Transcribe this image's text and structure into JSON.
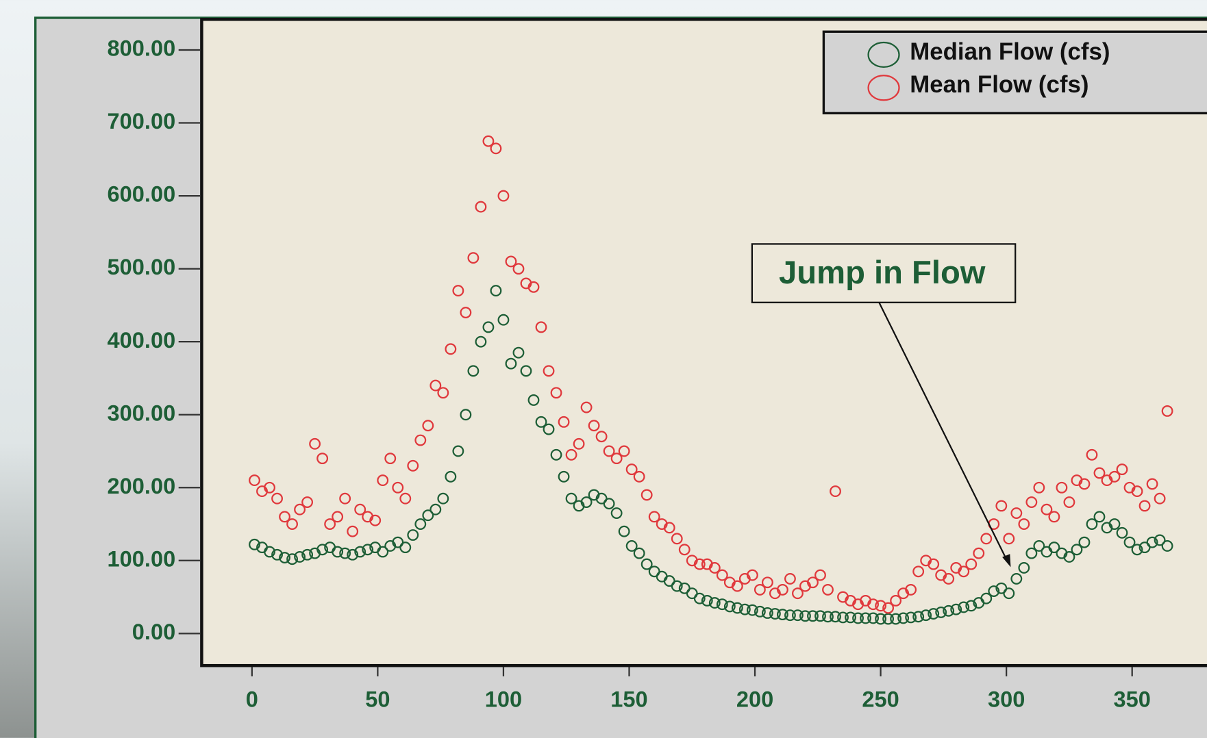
{
  "chart_data": {
    "type": "scatter",
    "annotation": "Jump in Flow",
    "x": [
      1,
      4,
      7,
      10,
      13,
      16,
      19,
      22,
      25,
      28,
      31,
      34,
      37,
      40,
      43,
      46,
      49,
      52,
      55,
      58,
      61,
      64,
      67,
      70,
      73,
      76,
      79,
      82,
      85,
      88,
      91,
      94,
      97,
      100,
      103,
      106,
      109,
      112,
      115,
      118,
      121,
      124,
      127,
      130,
      133,
      136,
      139,
      142,
      145,
      148,
      151,
      154,
      157,
      160,
      163,
      166,
      169,
      172,
      175,
      178,
      181,
      184,
      187,
      190,
      193,
      196,
      199,
      202,
      205,
      208,
      211,
      214,
      217,
      220,
      223,
      226,
      229,
      232,
      235,
      238,
      241,
      244,
      247,
      250,
      253,
      256,
      259,
      262,
      265,
      268,
      271,
      274,
      277,
      280,
      283,
      286,
      289,
      292,
      295,
      298,
      301,
      304,
      307,
      310,
      313,
      316,
      319,
      322,
      325,
      328,
      331,
      334,
      337,
      340,
      343,
      346,
      349,
      352,
      355,
      358,
      361,
      364
    ],
    "series": [
      {
        "name": "Median Flow (cfs)",
        "color": "#1d5e36",
        "values": [
          122,
          118,
          112,
          108,
          104,
          102,
          105,
          108,
          110,
          115,
          118,
          112,
          110,
          108,
          112,
          115,
          118,
          112,
          120,
          125,
          118,
          135,
          150,
          162,
          170,
          185,
          215,
          250,
          300,
          360,
          400,
          420,
          470,
          430,
          370,
          385,
          360,
          320,
          290,
          280,
          245,
          215,
          185,
          175,
          180,
          190,
          185,
          178,
          165,
          140,
          120,
          110,
          95,
          85,
          78,
          72,
          65,
          62,
          55,
          48,
          45,
          42,
          40,
          37,
          35,
          33,
          32,
          30,
          28,
          27,
          26,
          25,
          25,
          24,
          24,
          24,
          23,
          23,
          22,
          22,
          21,
          21,
          21,
          20,
          20,
          20,
          21,
          22,
          23,
          25,
          27,
          29,
          31,
          33,
          36,
          38,
          42,
          48,
          58,
          62,
          55,
          75,
          90,
          110,
          120,
          112,
          118,
          110,
          105,
          115,
          125,
          150,
          160,
          145,
          150,
          138,
          125,
          115,
          118,
          125,
          128,
          120
        ]
      },
      {
        "name": "Mean Flow (cfs)",
        "color": "#e0383c",
        "values": [
          210,
          195,
          200,
          185,
          160,
          150,
          170,
          180,
          260,
          240,
          150,
          160,
          185,
          140,
          170,
          160,
          155,
          210,
          240,
          200,
          185,
          230,
          265,
          285,
          340,
          330,
          390,
          470,
          440,
          515,
          585,
          675,
          665,
          600,
          510,
          500,
          480,
          475,
          420,
          360,
          330,
          290,
          245,
          260,
          310,
          285,
          270,
          250,
          240,
          250,
          225,
          215,
          190,
          160,
          150,
          145,
          130,
          115,
          100,
          95,
          95,
          90,
          80,
          70,
          65,
          75,
          80,
          60,
          70,
          55,
          60,
          75,
          55,
          65,
          70,
          80,
          60,
          195,
          50,
          45,
          40,
          45,
          40,
          38,
          35,
          45,
          55,
          60,
          85,
          100,
          95,
          80,
          75,
          90,
          85,
          95,
          110,
          130,
          150,
          175,
          130,
          165,
          150,
          180,
          200,
          170,
          160,
          200,
          180,
          210,
          205,
          245,
          220,
          210,
          215,
          225,
          200,
          195,
          175,
          205,
          185,
          305
        ]
      }
    ],
    "xlim": [
      -20,
      381
    ],
    "ylim": [
      -44,
      842
    ],
    "xticks": [
      0,
      50,
      100,
      150,
      200,
      250,
      300,
      350
    ],
    "yticks": [
      {
        "value": 0,
        "label": "0.00"
      },
      {
        "value": 100,
        "label": "100.00"
      },
      {
        "value": 200,
        "label": "200.00"
      },
      {
        "value": 300,
        "label": "300.00"
      },
      {
        "value": 400,
        "label": "400.00"
      },
      {
        "value": 500,
        "label": "500.00"
      },
      {
        "value": 600,
        "label": "600.00"
      },
      {
        "value": 700,
        "label": "700.00"
      },
      {
        "value": 800,
        "label": "800.00"
      }
    ],
    "legend": "upper right"
  }
}
